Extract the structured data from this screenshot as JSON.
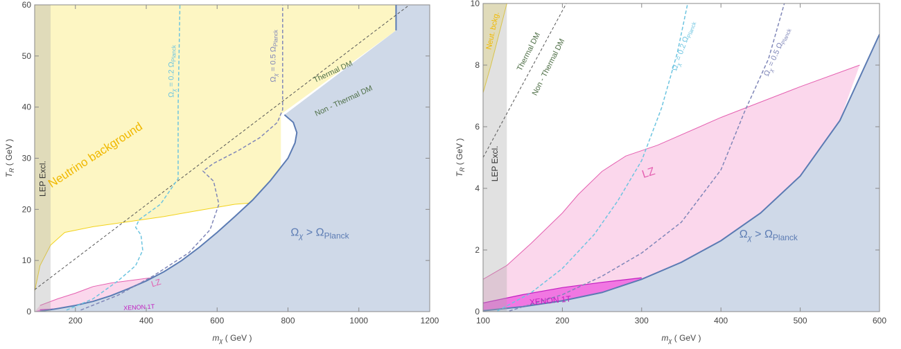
{
  "colors": {
    "neutrino": "#fdf6c3",
    "neutrino_edge": "#f2d21a",
    "overclosure": "#cfd9e8",
    "overclosure_edge": "#5b7bb3",
    "lep": "#a9a9a9",
    "lz": "#fbd3ea",
    "lz_edge": "#e45fb0",
    "xenon": "#ee66e0",
    "xenon_edge": "#c21fc0",
    "omega02": "#6cc4e0",
    "omega05": "#7f86b8",
    "thermal": "#555555",
    "annot_green": "#4f6f47",
    "neutrino_text": "#f0b800",
    "omega_text": "#5b7bb3",
    "lz_text": "#e45fb0",
    "xenon_text": "#c21fc0"
  },
  "chart_data": [
    {
      "type": "area",
      "x_label": "m",
      "x_label_sub": "χ",
      "x_label_unit": "( GeV )",
      "y_label": "T",
      "y_label_sub": "R",
      "y_label_unit": "( GeV )",
      "xlim": [
        85,
        1200
      ],
      "ylim": [
        0,
        60
      ],
      "x_ticks": [
        200,
        400,
        600,
        800,
        1000,
        1200
      ],
      "x_tick_labels": [
        "200",
        "400",
        "600",
        "800",
        "1000",
        "1200"
      ],
      "y_ticks": [
        0,
        10,
        20,
        30,
        40,
        50,
        60
      ],
      "y_tick_labels": [
        "0",
        "10",
        "20",
        "30",
        "40",
        "50",
        "60"
      ],
      "regions": {
        "lep_excl": {
          "x_max": 130,
          "label": "LEP  Excl."
        },
        "neutrino_background": {
          "label": "Neutrino  background",
          "lower": [
            [
              85,
              4
            ],
            [
              100,
              9
            ],
            [
              130,
              13
            ],
            [
              170,
              15.5
            ],
            [
              250,
              16.6
            ],
            [
              350,
              17.6
            ],
            [
              450,
              18.6
            ],
            [
              550,
              19.8
            ],
            [
              650,
              21
            ],
            [
              740,
              21.5
            ],
            [
              780,
              20.5
            ]
          ],
          "upper_x_max": 1105
        },
        "overclosure": {
          "label_omega": "Ω",
          "label_sub": "χ",
          "label_rel": ">",
          "label_planck": "Ω",
          "label_planck_sub": "Planck",
          "boundary": [
            [
              100,
              0.05
            ],
            [
              150,
              0.6
            ],
            [
              200,
              1.2
            ],
            [
              250,
              2
            ],
            [
              300,
              3.1
            ],
            [
              350,
              4.5
            ],
            [
              400,
              6
            ],
            [
              450,
              7.8
            ],
            [
              500,
              10
            ],
            [
              550,
              12.6
            ],
            [
              600,
              15.5
            ],
            [
              650,
              18.6
            ],
            [
              700,
              21.8
            ],
            [
              750,
              25.6
            ],
            [
              800,
              30
            ],
            [
              820,
              33
            ],
            [
              825,
              35
            ],
            [
              815,
              37
            ],
            [
              790,
              38.5
            ]
          ],
          "top_edge_x": 1105
        },
        "lz": {
          "label": "LZ",
          "upper": [
            [
              100,
              1.2
            ],
            [
              150,
              2.5
            ],
            [
              200,
              3.6
            ],
            [
              250,
              4.9
            ],
            [
              300,
              5.6
            ],
            [
              400,
              6.5
            ],
            [
              500,
              7.3
            ],
            [
              580,
              8
            ]
          ]
        },
        "xenon_1t": {
          "label": "XENON  1T",
          "upper": [
            [
              100,
              0.35
            ],
            [
              150,
              0.55
            ],
            [
              200,
              0.75
            ],
            [
              250,
              0.9
            ],
            [
              300,
              1.1
            ]
          ]
        }
      },
      "lines": {
        "omega_0_2": {
          "label": "Ω",
          "label_sub": "χ",
          "label_eq": "=  0.2  Ω",
          "label_planck": "Planck",
          "points": [
            [
              175,
              0.3
            ],
            [
              250,
              2.5
            ],
            [
              320,
              6
            ],
            [
              370,
              9
            ],
            [
              390,
              12
            ],
            [
              385,
              15
            ],
            [
              370,
              16.5
            ],
            [
              380,
              18
            ],
            [
              440,
              21
            ],
            [
              490,
              26
            ],
            [
              490,
              40
            ],
            [
              495,
              60
            ]
          ]
        },
        "omega_0_5": {
          "label": "Ω",
          "label_sub": "χ",
          "label_eq": "=  0.5  Ω",
          "label_planck": "Planck",
          "points": [
            [
              215,
              0.3
            ],
            [
              320,
              3.2
            ],
            [
              420,
              7
            ],
            [
              520,
              11.5
            ],
            [
              580,
              16
            ],
            [
              605,
              21
            ],
            [
              590,
              25.5
            ],
            [
              560,
              27.5
            ],
            [
              590,
              29
            ],
            [
              660,
              31.5
            ],
            [
              720,
              34
            ],
            [
              770,
              37
            ],
            [
              785,
              39.5
            ],
            [
              785,
              60
            ]
          ]
        },
        "thermal_boundary": {
          "label_top": "Thermal   DM",
          "label_bottom": "Non - Thermal   DM",
          "points": [
            [
              85,
              4.3
            ],
            [
              1200,
              63
            ]
          ]
        }
      }
    },
    {
      "type": "area",
      "x_label": "m",
      "x_label_sub": "χ",
      "x_label_unit": "( GeV )",
      "y_label": "T",
      "y_label_sub": "R",
      "y_label_unit": "( GeV )",
      "xlim": [
        100,
        600
      ],
      "ylim": [
        0,
        10
      ],
      "x_ticks": [
        100,
        200,
        300,
        400,
        500,
        600
      ],
      "x_tick_labels": [
        "100",
        "200",
        "300",
        "400",
        "500",
        "600"
      ],
      "y_ticks": [
        0,
        2,
        4,
        6,
        8,
        10
      ],
      "y_tick_labels": [
        "0",
        "2",
        "4",
        "6",
        "8",
        "10"
      ],
      "regions": {
        "lep_excl": {
          "x_max": 130,
          "label": "LEP  Excl."
        },
        "neutrino_background": {
          "label": "Neut.  bckg.",
          "lower": [
            [
              100,
              7.1
            ],
            [
              110,
              8
            ],
            [
              120,
              9
            ],
            [
              130,
              10
            ]
          ]
        },
        "overclosure": {
          "label_omega": "Ω",
          "label_sub": "χ",
          "label_rel": ">",
          "label_planck": "Ω",
          "label_planck_sub": "Planck",
          "boundary": [
            [
              100,
              0.03
            ],
            [
              150,
              0.16
            ],
            [
              200,
              0.35
            ],
            [
              250,
              0.62
            ],
            [
              300,
              1.05
            ],
            [
              350,
              1.6
            ],
            [
              400,
              2.3
            ],
            [
              450,
              3.2
            ],
            [
              500,
              4.4
            ],
            [
              550,
              6.2
            ],
            [
              600,
              9
            ]
          ]
        },
        "lz": {
          "label": "LZ",
          "upper": [
            [
              100,
              1.05
            ],
            [
              130,
              1.5
            ],
            [
              160,
              2.2
            ],
            [
              200,
              3.2
            ],
            [
              220,
              3.8
            ],
            [
              250,
              4.55
            ],
            [
              280,
              5.05
            ],
            [
              320,
              5.4
            ],
            [
              400,
              6.3
            ],
            [
              450,
              6.8
            ],
            [
              500,
              7.3
            ],
            [
              575,
              8
            ]
          ]
        },
        "xenon_1t": {
          "label": "XENON  1T",
          "upper": [
            [
              100,
              0.28
            ],
            [
              150,
              0.55
            ],
            [
              200,
              0.78
            ],
            [
              250,
              0.95
            ],
            [
              300,
              1.1
            ]
          ]
        }
      },
      "lines": {
        "omega_0_2": {
          "label": "Ω",
          "label_sub": "χ",
          "label_eq": "=  0.2  Ω",
          "label_planck": "Planck",
          "points": [
            [
              118,
              0.02
            ],
            [
              160,
              0.6
            ],
            [
              200,
              1.4
            ],
            [
              240,
              2.5
            ],
            [
              270,
              3.6
            ],
            [
              300,
              4.9
            ],
            [
              325,
              6.6
            ],
            [
              345,
              8.4
            ],
            [
              358,
              10
            ]
          ]
        },
        "omega_0_5": {
          "label": "Ω",
          "label_sub": "χ",
          "label_eq": "=  0.5  Ω",
          "label_planck": "Planck",
          "points": [
            [
              133,
              0.02
            ],
            [
              200,
              0.55
            ],
            [
              250,
              1.15
            ],
            [
              300,
              1.9
            ],
            [
              350,
              2.9
            ],
            [
              400,
              4.6
            ],
            [
              430,
              6.5
            ],
            [
              460,
              8.2
            ],
            [
              480,
              10
            ]
          ]
        },
        "thermal_boundary": {
          "label_top": "Thermal   DM",
          "label_bottom": "Non - Thermal   DM",
          "points": [
            [
              100,
              5
            ],
            [
              205,
              10
            ]
          ]
        }
      }
    }
  ]
}
